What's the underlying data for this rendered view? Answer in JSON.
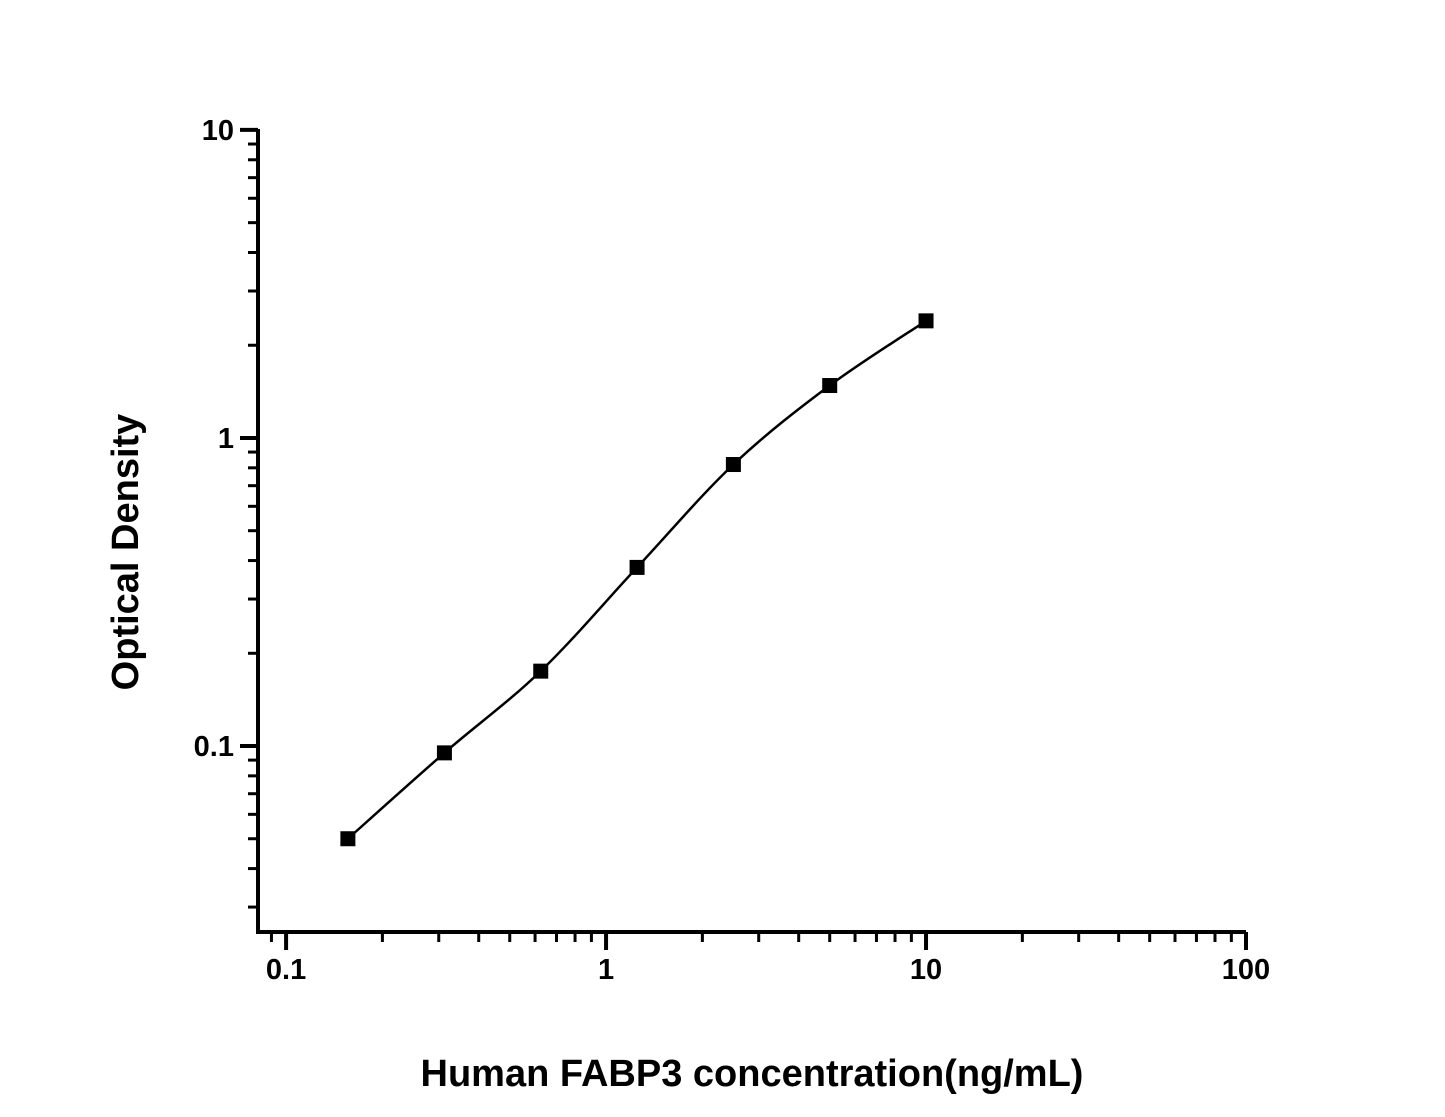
{
  "figure": {
    "background_color": "#ffffff",
    "foreground_color": "#000000"
  },
  "chart_data": {
    "type": "scatter",
    "title": "",
    "xlabel": "Human FABP3 concentration(ng/mL)",
    "ylabel": "Optical Density",
    "x_scale": "log",
    "y_scale": "log",
    "xlim": [
      0.0817,
      100
    ],
    "ylim": [
      0.0249,
      10.07
    ],
    "grid": false,
    "legend_position": "none",
    "x": [
      0.156,
      0.3125,
      0.625,
      1.25,
      2.5,
      5,
      10
    ],
    "y": [
      0.05,
      0.095,
      0.175,
      0.38,
      0.82,
      1.48,
      2.4
    ],
    "x_major_ticks": [
      {
        "value": 0.1,
        "label": "0.1"
      },
      {
        "value": 1,
        "label": "1"
      },
      {
        "value": 10,
        "label": "10"
      },
      {
        "value": 100,
        "label": "100"
      }
    ],
    "y_major_ticks": [
      {
        "value": 0.1,
        "label": "0.1"
      },
      {
        "value": 1,
        "label": "1"
      },
      {
        "value": 10,
        "label": "10"
      }
    ],
    "marker": {
      "shape": "square",
      "size": 15,
      "color": "#000000"
    },
    "line": {
      "color": "#000000",
      "width": 2.5,
      "smooth": true
    },
    "axis_color": "#000000"
  }
}
